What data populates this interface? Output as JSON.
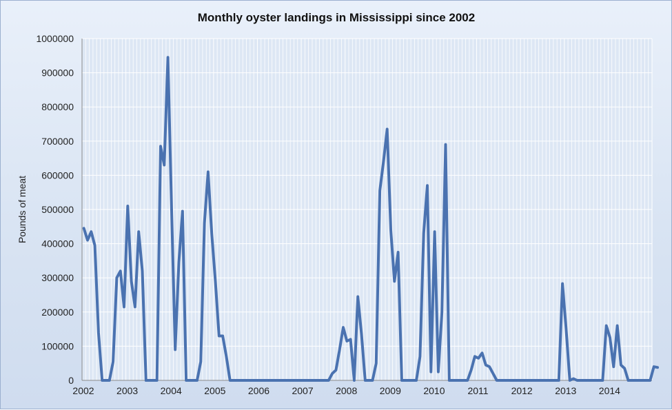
{
  "chart_data": {
    "type": "line",
    "title": "Monthly oyster landings in Mississippi since 2002",
    "xlabel": "",
    "ylabel": "Pounds of meat",
    "ylim": [
      0,
      1000000
    ],
    "yticks": [
      "0",
      "100000",
      "200000",
      "300000",
      "400000",
      "500000",
      "600000",
      "700000",
      "800000",
      "900000",
      "1000000"
    ],
    "xticks": [
      "2002",
      "2003",
      "2004",
      "2005",
      "2006",
      "2007",
      "2008",
      "2009",
      "2010",
      "2011",
      "2012",
      "2013",
      "2014"
    ],
    "grid": true,
    "legend": "none",
    "series_color": "#4a72b0",
    "x_start": "2002-01",
    "series": [
      {
        "values": [
          445000,
          410000,
          435000,
          395000,
          140000,
          0,
          0,
          0,
          55000,
          300000,
          320000,
          215000,
          510000,
          290000,
          215000,
          435000,
          320000,
          0,
          0,
          0,
          0,
          685000,
          630000,
          945000,
          505000,
          90000,
          345000,
          495000,
          0,
          0,
          0,
          0,
          55000,
          460000,
          610000,
          430000,
          290000,
          130000,
          130000,
          70000,
          0,
          0,
          0,
          0,
          0,
          0,
          0,
          0,
          0,
          0,
          0,
          0,
          0,
          0,
          0,
          0,
          0,
          0,
          0,
          0,
          0,
          0,
          0,
          0,
          0,
          0,
          0,
          0,
          20000,
          30000,
          90000,
          155000,
          115000,
          120000,
          0,
          245000,
          135000,
          0,
          0,
          0,
          50000,
          555000,
          640000,
          735000,
          440000,
          290000,
          375000,
          0,
          0,
          0,
          0,
          0,
          70000,
          430000,
          570000,
          25000,
          435000,
          25000,
          200000,
          690000,
          0,
          0,
          0,
          0,
          0,
          0,
          30000,
          70000,
          65000,
          80000,
          45000,
          40000,
          20000,
          0,
          0,
          0,
          0,
          0,
          0,
          0,
          0,
          0,
          0,
          0,
          0,
          0,
          0,
          0,
          0,
          0,
          0,
          283000,
          150000,
          0,
          5000,
          0,
          0,
          0,
          0,
          0,
          0,
          0,
          0,
          160000,
          125000,
          40000,
          160000,
          45000,
          35000,
          0,
          0,
          0,
          0,
          0,
          0,
          0,
          40000,
          38000
        ]
      }
    ]
  }
}
